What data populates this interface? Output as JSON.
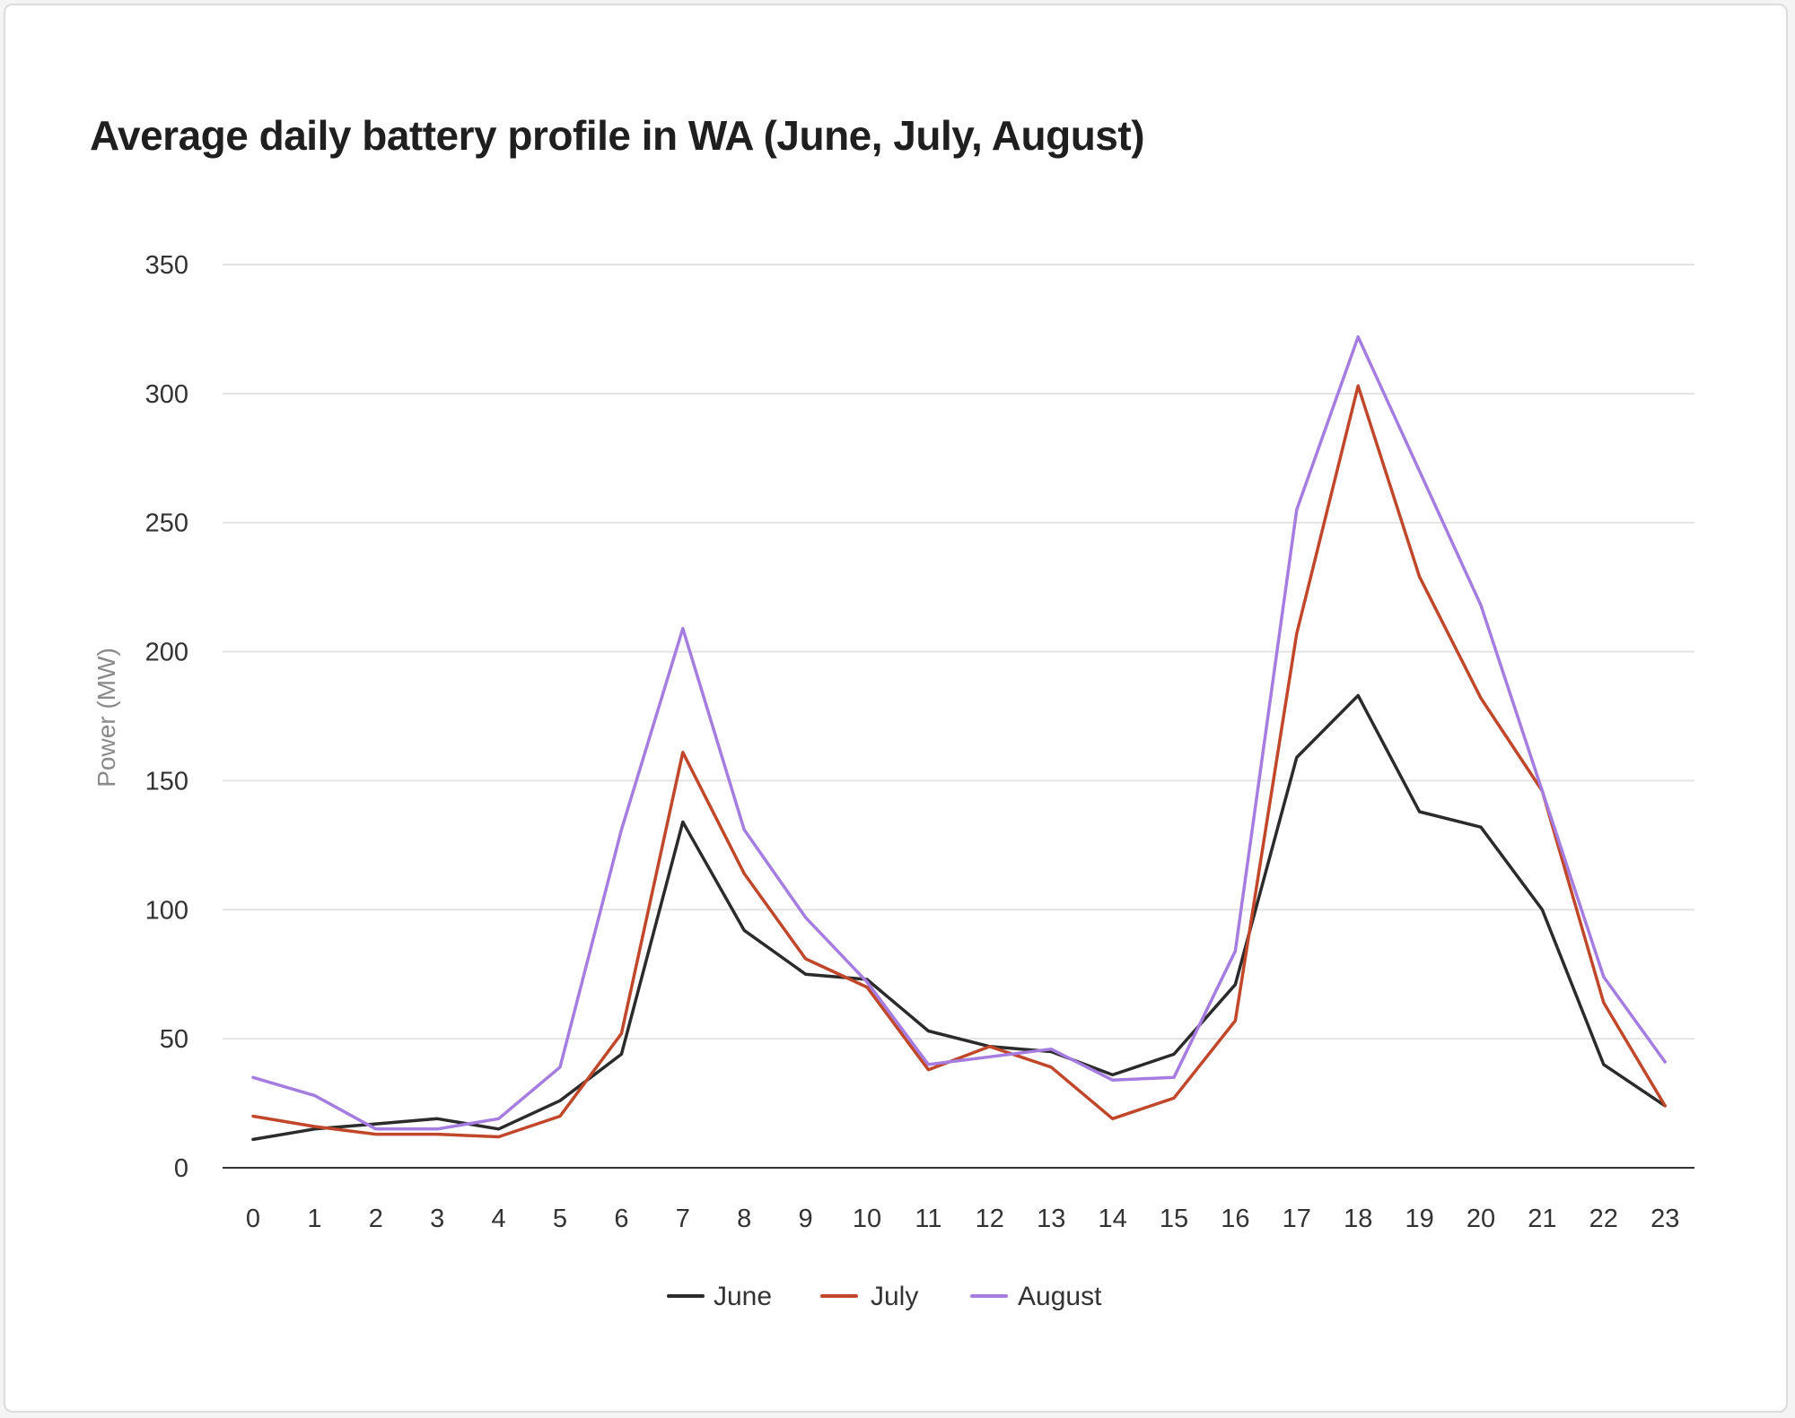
{
  "chart_data": {
    "type": "line",
    "title": "Average daily battery profile in WA (June, July, August)",
    "xlabel": "",
    "ylabel": "Power (MW)",
    "ylim": [
      0,
      350
    ],
    "yticks": [
      "0",
      "50",
      "100",
      "150",
      "200",
      "250",
      "300",
      "350"
    ],
    "categories": [
      "0",
      "1",
      "2",
      "3",
      "4",
      "5",
      "6",
      "7",
      "8",
      "9",
      "10",
      "11",
      "12",
      "13",
      "14",
      "15",
      "16",
      "17",
      "18",
      "19",
      "20",
      "21",
      "22",
      "23"
    ],
    "grid": true,
    "legend_position": "bottom",
    "series": [
      {
        "name": "June",
        "color": "#2b2b2b",
        "values": [
          11,
          15,
          17,
          19,
          15,
          26,
          44,
          134,
          92,
          75,
          73,
          53,
          47,
          45,
          36,
          44,
          71,
          159,
          183,
          138,
          132,
          100,
          40,
          24
        ]
      },
      {
        "name": "July",
        "color": "#c0472a",
        "values": [
          20,
          16,
          13,
          13,
          12,
          20,
          52,
          161,
          114,
          81,
          70,
          38,
          47,
          39,
          19,
          27,
          57,
          207,
          303,
          229,
          182,
          146,
          64,
          24
        ]
      },
      {
        "name": "August",
        "color": "#a57de0",
        "values": [
          35,
          28,
          15,
          15,
          19,
          39,
          131,
          209,
          131,
          97,
          72,
          40,
          43,
          46,
          34,
          35,
          84,
          255,
          322,
          270,
          218,
          146,
          74,
          41
        ]
      }
    ]
  }
}
